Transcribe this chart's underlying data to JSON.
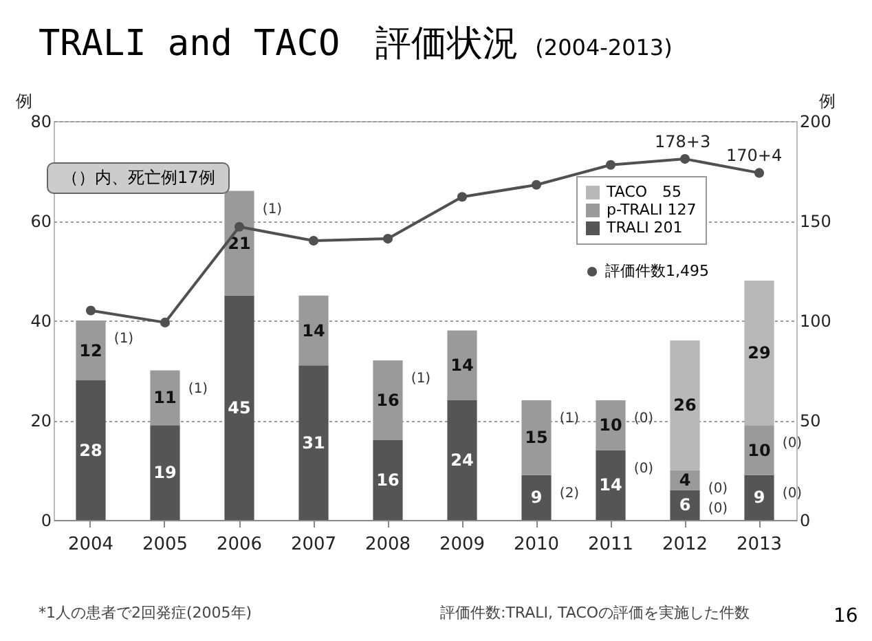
{
  "chart_data": {
    "type": "bar",
    "title": "TRALI and TACO　評価状況",
    "subtitle": "(2004-2013)",
    "ylabel": "例",
    "y2label": "例",
    "categories": [
      "2004",
      "2005",
      "2006",
      "2007",
      "2008",
      "2009",
      "2010",
      "2011",
      "2012",
      "2013"
    ],
    "stacked": true,
    "data_labels": true,
    "grid": "y",
    "legend": "top right",
    "marker": "circle",
    "line_style": "solid",
    "ylim": [
      0,
      80
    ],
    "yticks": [
      0,
      20,
      40,
      60,
      80
    ],
    "y2lim": [
      0,
      200
    ],
    "y2ticks": [
      0,
      50,
      100,
      150,
      200
    ],
    "series": [
      {
        "name": "TRALI 201",
        "color": "#555555",
        "values": [
          28,
          19,
          45,
          31,
          16,
          24,
          9,
          14,
          6,
          9
        ]
      },
      {
        "name": "p-TRALI 127",
        "color": "#9a9a9a",
        "values": [
          12,
          11,
          21,
          14,
          16,
          14,
          15,
          10,
          4,
          10
        ]
      },
      {
        "name": "TACO　55",
        "color": "#b8b8b8",
        "values": [
          null,
          null,
          null,
          null,
          null,
          null,
          null,
          null,
          26,
          29
        ]
      },
      {
        "name": "評価件数1,495",
        "type": "line",
        "axis": "y2",
        "color": "#505050",
        "values": [
          105,
          99,
          147,
          140,
          141,
          162,
          168,
          178,
          181,
          174
        ],
        "value_labels": [
          null,
          null,
          null,
          null,
          null,
          null,
          null,
          null,
          null,
          null
        ]
      }
    ],
    "annotations": [
      "（）内、死亡例17例",
      "*1人の患者で2回発症(2005年)",
      "評価件数:TRALI, TACOの評価を実施した件数",
      "16",
      "178+3",
      "170+4",
      {
        "text": "(1)",
        "x": "2004",
        "y": 40
      },
      {
        "text": "(1)",
        "x": "2005",
        "y": 30
      },
      {
        "text": "(1)",
        "x": "2006",
        "y": 66
      },
      {
        "text": "(1)",
        "x": "2008",
        "y": 32
      },
      {
        "text": "(1)",
        "x": "2010",
        "y": 24
      },
      {
        "text": "(2)",
        "x": "2010",
        "y": 9
      },
      {
        "text": "(0)",
        "x": "2011",
        "y": 24
      },
      {
        "text": "(0)",
        "x": "2011",
        "y": 14
      },
      {
        "text": "(0)",
        "x": "2012",
        "y": 10
      },
      {
        "text": "(0)",
        "x": "2012",
        "y": 6
      },
      {
        "text": "(0)",
        "x": "2013",
        "y": 19
      },
      {
        "text": "(0)",
        "x": "2013",
        "y": 9
      }
    ]
  }
}
